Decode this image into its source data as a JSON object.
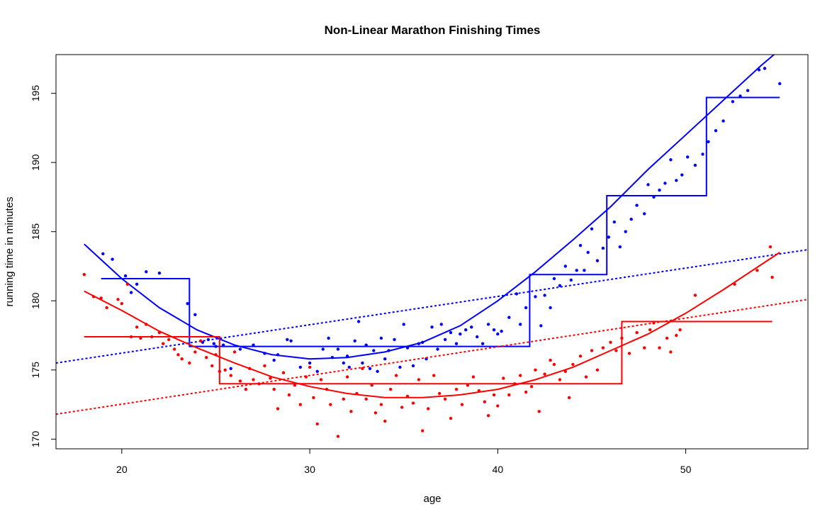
{
  "chart_data": {
    "type": "scatter",
    "title": "Non-Linear Marathon Finishing Times",
    "xlabel": "age",
    "ylabel": "running time in minutes",
    "xlim": [
      16.5,
      56.5
    ],
    "ylim": [
      169.3,
      197.8
    ],
    "x_ticks": [
      20,
      30,
      40,
      50
    ],
    "y_ticks": [
      170,
      175,
      180,
      185,
      190,
      195
    ],
    "grid": false,
    "legend": "none",
    "series": [
      {
        "color": "#0000ff",
        "points": [
          [
            19.0,
            183.4
          ],
          [
            19.5,
            183.0
          ],
          [
            20.2,
            181.8
          ],
          [
            20.5,
            180.6
          ],
          [
            20.8,
            181.2
          ],
          [
            21.3,
            182.1
          ],
          [
            22.0,
            182.0
          ],
          [
            23.5,
            179.8
          ],
          [
            23.9,
            179.0
          ],
          [
            24.3,
            177.0
          ],
          [
            24.6,
            177.2
          ],
          [
            24.9,
            176.9
          ],
          [
            25.0,
            176.7
          ],
          [
            25.4,
            176.8
          ],
          [
            25.8,
            175.1
          ],
          [
            26.3,
            176.5
          ],
          [
            27.0,
            176.8
          ],
          [
            27.6,
            176.2
          ],
          [
            28.1,
            175.7
          ],
          [
            28.3,
            176.1
          ],
          [
            28.8,
            177.2
          ],
          [
            29.0,
            177.1
          ],
          [
            29.5,
            175.2
          ],
          [
            30.0,
            175.5
          ],
          [
            30.4,
            174.9
          ],
          [
            30.7,
            176.5
          ],
          [
            31.0,
            177.3
          ],
          [
            31.2,
            175.9
          ],
          [
            31.5,
            176.5
          ],
          [
            31.8,
            175.5
          ],
          [
            32.0,
            176.0
          ],
          [
            32.1,
            175.2
          ],
          [
            32.4,
            177.1
          ],
          [
            32.6,
            178.5
          ],
          [
            32.8,
            175.5
          ],
          [
            33.0,
            176.8
          ],
          [
            33.2,
            175.1
          ],
          [
            33.4,
            176.4
          ],
          [
            33.6,
            174.9
          ],
          [
            33.8,
            177.3
          ],
          [
            34.0,
            175.8
          ],
          [
            34.2,
            176.4
          ],
          [
            34.5,
            177.2
          ],
          [
            34.8,
            175.2
          ],
          [
            35.0,
            178.3
          ],
          [
            35.2,
            176.6
          ],
          [
            35.5,
            175.3
          ],
          [
            35.8,
            176.9
          ],
          [
            36.0,
            177.0
          ],
          [
            36.2,
            175.8
          ],
          [
            36.5,
            178.1
          ],
          [
            36.8,
            176.5
          ],
          [
            37.0,
            178.3
          ],
          [
            37.2,
            177.2
          ],
          [
            37.5,
            177.7
          ],
          [
            37.8,
            176.9
          ],
          [
            38.0,
            177.6
          ],
          [
            38.3,
            177.9
          ],
          [
            38.6,
            178.1
          ],
          [
            38.9,
            177.4
          ],
          [
            39.2,
            176.9
          ],
          [
            39.5,
            178.3
          ],
          [
            39.8,
            177.9
          ],
          [
            40.0,
            177.6
          ],
          [
            40.2,
            177.8
          ],
          [
            40.6,
            178.8
          ],
          [
            41.0,
            180.5
          ],
          [
            41.2,
            178.3
          ],
          [
            41.5,
            179.5
          ],
          [
            42.0,
            180.3
          ],
          [
            42.3,
            178.2
          ],
          [
            42.5,
            180.4
          ],
          [
            42.8,
            179.5
          ],
          [
            43.0,
            181.6
          ],
          [
            43.3,
            181.1
          ],
          [
            43.6,
            182.5
          ],
          [
            43.9,
            181.5
          ],
          [
            44.2,
            182.2
          ],
          [
            44.4,
            184.0
          ],
          [
            44.6,
            182.2
          ],
          [
            44.8,
            183.5
          ],
          [
            45.0,
            185.2
          ],
          [
            45.3,
            182.9
          ],
          [
            45.6,
            183.8
          ],
          [
            45.9,
            184.6
          ],
          [
            46.2,
            185.7
          ],
          [
            46.5,
            183.9
          ],
          [
            46.8,
            185.0
          ],
          [
            47.1,
            185.9
          ],
          [
            47.4,
            186.9
          ],
          [
            47.8,
            186.3
          ],
          [
            48.0,
            188.4
          ],
          [
            48.3,
            187.5
          ],
          [
            48.6,
            188.0
          ],
          [
            48.9,
            188.5
          ],
          [
            49.2,
            190.2
          ],
          [
            49.5,
            188.7
          ],
          [
            49.8,
            189.1
          ],
          [
            50.1,
            190.4
          ],
          [
            50.5,
            189.8
          ],
          [
            50.9,
            190.6
          ],
          [
            51.2,
            191.5
          ],
          [
            51.6,
            192.3
          ],
          [
            52.0,
            193.0
          ],
          [
            52.5,
            194.4
          ],
          [
            52.9,
            194.8
          ],
          [
            53.3,
            195.2
          ],
          [
            53.9,
            196.7
          ],
          [
            54.2,
            196.8
          ],
          [
            55.0,
            195.7
          ]
        ],
        "step_fit": {
          "x": [
            18.9,
            23.6,
            23.6,
            41.7,
            41.7,
            45.8,
            45.8,
            51.1,
            51.1,
            55.0
          ],
          "y": [
            181.6,
            181.6,
            176.7,
            176.7,
            181.9,
            181.9,
            187.6,
            187.6,
            194.7,
            194.7
          ]
        },
        "quadratic_fit": {
          "x": [
            18.0,
            20.0,
            22.0,
            24.0,
            26.0,
            28.0,
            30.0,
            32.0,
            34.0,
            36.0,
            38.0,
            40.0,
            42.0,
            44.0,
            46.0,
            48.0,
            50.0,
            52.0,
            54.0,
            56.0
          ],
          "y": [
            184.1,
            181.6,
            179.5,
            177.9,
            176.8,
            176.1,
            175.8,
            175.9,
            176.3,
            177.0,
            178.2,
            180.0,
            182.1,
            184.4,
            186.8,
            189.5,
            192.0,
            194.5,
            197.0,
            199.3
          ]
        },
        "linear_fit": {
          "x": [
            16.5,
            56.5
          ],
          "y": [
            175.5,
            183.7
          ]
        }
      },
      {
        "color": "#ff0000",
        "points": [
          [
            18.0,
            181.9
          ],
          [
            18.5,
            180.3
          ],
          [
            18.9,
            180.2
          ],
          [
            19.2,
            179.5
          ],
          [
            19.8,
            180.1
          ],
          [
            20.0,
            179.8
          ],
          [
            20.3,
            181.2
          ],
          [
            20.5,
            177.4
          ],
          [
            20.8,
            178.1
          ],
          [
            21.0,
            177.3
          ],
          [
            21.3,
            178.3
          ],
          [
            21.6,
            177.4
          ],
          [
            22.0,
            177.7
          ],
          [
            22.2,
            176.9
          ],
          [
            22.5,
            177.2
          ],
          [
            22.8,
            176.5
          ],
          [
            23.0,
            176.1
          ],
          [
            23.2,
            175.8
          ],
          [
            23.6,
            175.5
          ],
          [
            23.9,
            176.3
          ],
          [
            24.2,
            177.1
          ],
          [
            24.5,
            175.9
          ],
          [
            24.8,
            175.3
          ],
          [
            25.0,
            176.1
          ],
          [
            25.2,
            174.9
          ],
          [
            25.5,
            175.0
          ],
          [
            25.8,
            174.6
          ],
          [
            26.0,
            176.3
          ],
          [
            26.3,
            174.2
          ],
          [
            26.6,
            173.6
          ],
          [
            26.8,
            175.1
          ],
          [
            27.0,
            174.3
          ],
          [
            27.3,
            174.0
          ],
          [
            27.6,
            175.3
          ],
          [
            27.9,
            174.4
          ],
          [
            28.1,
            173.6
          ],
          [
            28.3,
            172.2
          ],
          [
            28.6,
            174.8
          ],
          [
            28.9,
            173.2
          ],
          [
            29.2,
            173.9
          ],
          [
            29.5,
            172.5
          ],
          [
            29.8,
            174.5
          ],
          [
            30.0,
            175.2
          ],
          [
            30.2,
            173.0
          ],
          [
            30.4,
            171.1
          ],
          [
            30.6,
            174.3
          ],
          [
            30.9,
            173.6
          ],
          [
            31.1,
            172.5
          ],
          [
            31.5,
            170.2
          ],
          [
            31.8,
            172.9
          ],
          [
            32.0,
            174.5
          ],
          [
            32.2,
            172.0
          ],
          [
            32.5,
            173.3
          ],
          [
            32.8,
            175.1
          ],
          [
            33.0,
            172.9
          ],
          [
            33.3,
            173.9
          ],
          [
            33.5,
            171.9
          ],
          [
            33.8,
            172.5
          ],
          [
            34.0,
            171.3
          ],
          [
            34.3,
            173.6
          ],
          [
            34.6,
            174.6
          ],
          [
            34.9,
            172.3
          ],
          [
            35.2,
            173.1
          ],
          [
            35.5,
            172.6
          ],
          [
            35.8,
            174.3
          ],
          [
            36.0,
            170.6
          ],
          [
            36.3,
            172.2
          ],
          [
            36.6,
            174.6
          ],
          [
            36.9,
            173.3
          ],
          [
            37.2,
            172.9
          ],
          [
            37.5,
            171.5
          ],
          [
            37.8,
            173.6
          ],
          [
            38.1,
            172.5
          ],
          [
            38.4,
            173.9
          ],
          [
            38.7,
            174.5
          ],
          [
            39.0,
            173.5
          ],
          [
            39.3,
            172.7
          ],
          [
            39.5,
            171.7
          ],
          [
            39.8,
            173.2
          ],
          [
            40.0,
            172.4
          ],
          [
            40.3,
            174.4
          ],
          [
            40.6,
            173.2
          ],
          [
            40.9,
            174.0
          ],
          [
            41.2,
            174.6
          ],
          [
            41.5,
            173.4
          ],
          [
            41.8,
            173.8
          ],
          [
            42.0,
            175.0
          ],
          [
            42.2,
            172.0
          ],
          [
            42.5,
            174.7
          ],
          [
            42.8,
            175.7
          ],
          [
            43.0,
            175.4
          ],
          [
            43.3,
            174.3
          ],
          [
            43.6,
            174.9
          ],
          [
            43.8,
            173.0
          ],
          [
            44.0,
            175.4
          ],
          [
            44.4,
            176.0
          ],
          [
            44.7,
            174.5
          ],
          [
            45.0,
            176.4
          ],
          [
            45.3,
            175.0
          ],
          [
            45.6,
            176.6
          ],
          [
            46.0,
            177.0
          ],
          [
            46.3,
            176.4
          ],
          [
            46.6,
            177.3
          ],
          [
            47.0,
            176.2
          ],
          [
            47.4,
            177.7
          ],
          [
            47.8,
            176.6
          ],
          [
            48.1,
            177.9
          ],
          [
            48.3,
            178.4
          ],
          [
            48.6,
            176.6
          ],
          [
            49.0,
            177.3
          ],
          [
            49.2,
            176.3
          ],
          [
            49.5,
            177.5
          ],
          [
            49.7,
            177.9
          ],
          [
            50.5,
            180.4
          ],
          [
            52.6,
            181.2
          ],
          [
            53.8,
            182.2
          ],
          [
            54.5,
            183.9
          ],
          [
            54.6,
            181.7
          ]
        ],
        "step_fit": {
          "x": [
            18.0,
            25.2,
            25.2,
            45.8,
            45.8,
            46.6,
            46.6,
            54.6
          ],
          "y": [
            177.4,
            177.4,
            174.0,
            174.0,
            174.0,
            174.0,
            178.5,
            178.5
          ]
        },
        "quadratic_fit": {
          "x": [
            18.0,
            20.0,
            22.0,
            24.0,
            26.0,
            28.0,
            30.0,
            32.0,
            34.0,
            36.0,
            38.0,
            40.0,
            42.0,
            44.0,
            46.0,
            48.0,
            50.0,
            52.0,
            54.0,
            55.0
          ],
          "y": [
            180.7,
            179.3,
            177.8,
            176.6,
            175.5,
            174.5,
            173.8,
            173.3,
            173.0,
            173.0,
            173.2,
            173.6,
            174.3,
            175.2,
            176.4,
            177.6,
            179.1,
            180.8,
            182.6,
            183.5
          ]
        },
        "linear_fit": {
          "x": [
            16.5,
            56.5
          ],
          "y": [
            171.8,
            180.1
          ]
        }
      }
    ]
  }
}
